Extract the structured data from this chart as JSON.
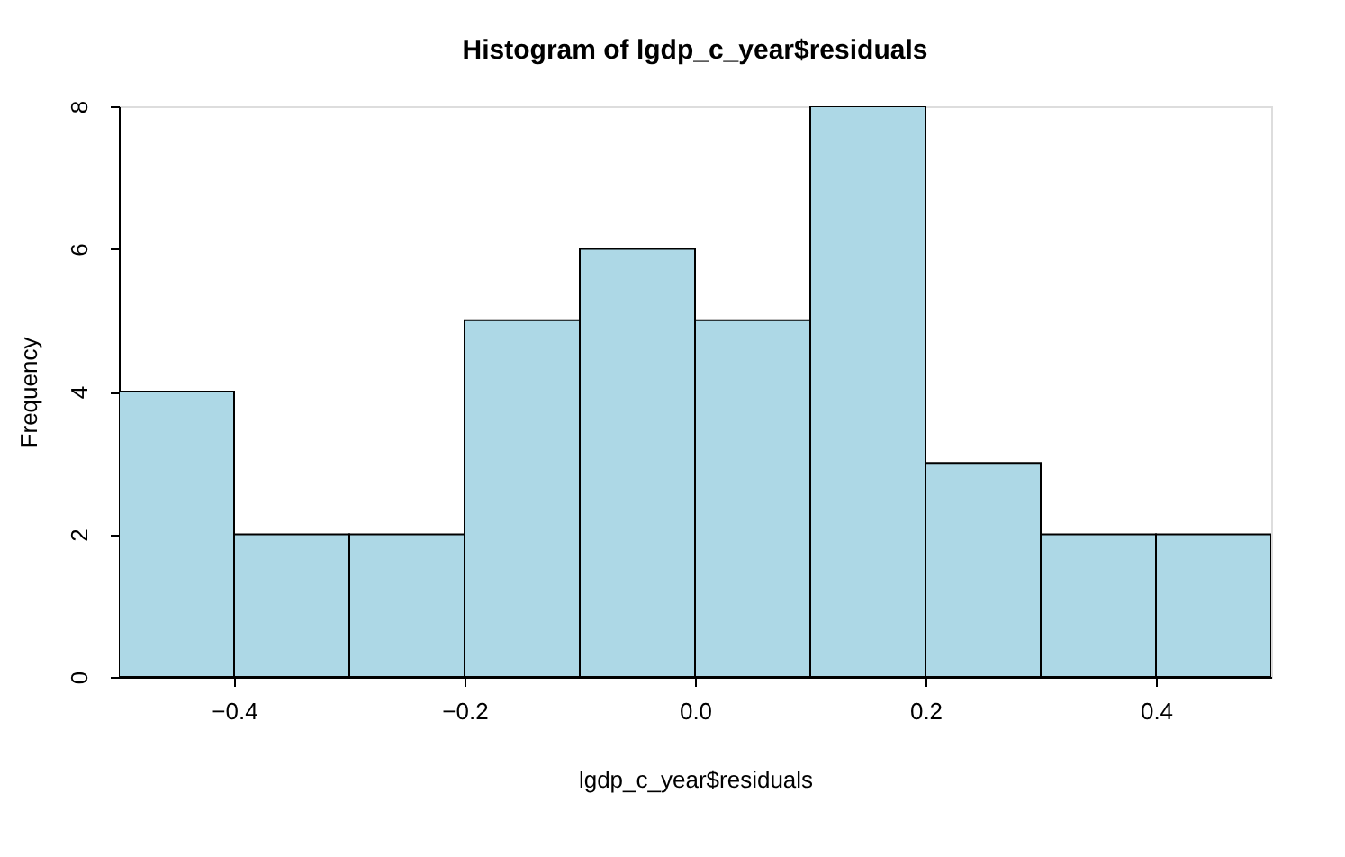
{
  "chart_data": {
    "type": "histogram",
    "title": "Histogram of lgdp_c_year$residuals",
    "xlabel": "lgdp_c_year$residuals",
    "ylabel": "Frequency",
    "bins": [
      -0.5,
      -0.4,
      -0.3,
      -0.2,
      -0.1,
      0.0,
      0.1,
      0.2,
      0.3,
      0.4,
      0.5
    ],
    "values": [
      4,
      2,
      2,
      5,
      6,
      5,
      8,
      3,
      2,
      2
    ],
    "color": "#add8e6",
    "xlim": [
      -0.5,
      0.5
    ],
    "xticks": [
      -0.4,
      -0.2,
      {
        "value": 0,
        "label": "0.0"
      },
      0.2,
      0.4
    ],
    "ylim": [
      0,
      8
    ],
    "yticks": [
      0,
      2,
      4,
      6,
      8
    ],
    "grid": false
  }
}
